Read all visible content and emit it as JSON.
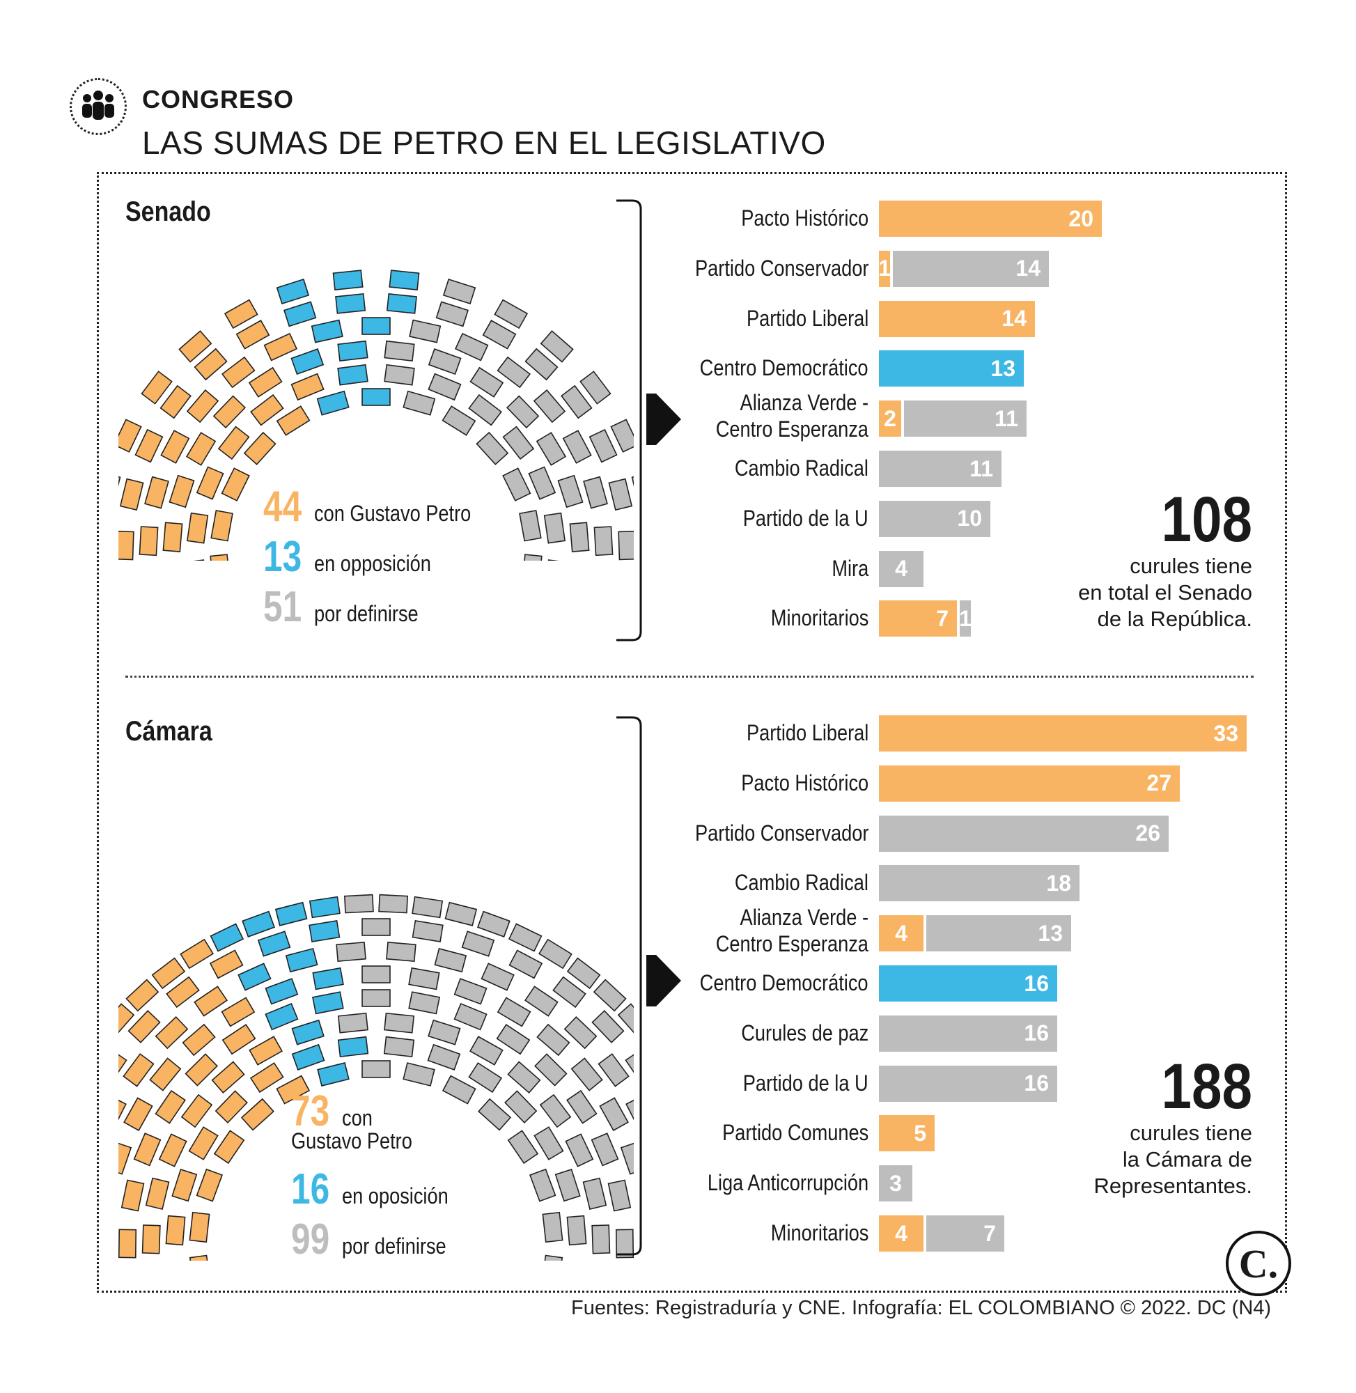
{
  "header": {
    "kicker": "CONGRESO",
    "headline": "LAS SUMAS DE PETRO EN EL LEGISLATIVO",
    "icon": "group-people-icon"
  },
  "colors": {
    "petro": "#F9B463",
    "opposition": "#3DB7E4",
    "undefined": "#BDBDBD",
    "text": "#1a1a1a"
  },
  "chart_data": [
    {
      "type": "bar",
      "orientation": "horizontal",
      "stacked": true,
      "title": "Senado",
      "categories": [
        "Pacto Histórico",
        "Partido Conservador",
        "Partido Liberal",
        "Centro Democrático",
        "Alianza Verde - Centro Esperanza",
        "Cambio Radical",
        "Partido de la U",
        "Mira",
        "Minoritarios"
      ],
      "series": [
        {
          "name": "con Gustavo Petro",
          "color": "petro",
          "values": [
            20,
            1,
            14,
            0,
            2,
            0,
            0,
            0,
            7
          ]
        },
        {
          "name": "en oposición",
          "color": "opposition",
          "values": [
            0,
            0,
            0,
            13,
            0,
            0,
            0,
            0,
            0
          ]
        },
        {
          "name": "por definirse",
          "color": "undefined",
          "values": [
            0,
            14,
            0,
            0,
            11,
            11,
            10,
            4,
            1
          ]
        }
      ],
      "xlim": [
        0,
        33
      ],
      "summary": [
        {
          "value": "44",
          "label": "con Gustavo Petro",
          "color": "petro"
        },
        {
          "value": "13",
          "label": "en opposición",
          "color": "opposition"
        },
        {
          "value": "51",
          "label": "por definirse",
          "color": "undefined"
        }
      ],
      "total": {
        "value": "108",
        "text_lines": [
          "curules tiene",
          "en total el Senado",
          "de la República."
        ]
      }
    },
    {
      "type": "bar",
      "orientation": "horizontal",
      "stacked": true,
      "title": "Cámara",
      "categories": [
        "Partido Liberal",
        "Pacto Histórico",
        "Partido Conservador",
        "Cambio Radical",
        "Alianza Verde - Centro Esperanza",
        "Centro Democrático",
        "Curules de paz",
        "Partido de la U",
        "Partido Comunes",
        "Liga Anticorrupción",
        "Minoritarios"
      ],
      "series": [
        {
          "name": "con Gustavo Petro",
          "color": "petro",
          "values": [
            33,
            27,
            0,
            0,
            4,
            0,
            0,
            0,
            5,
            0,
            4
          ]
        },
        {
          "name": "en oposición",
          "color": "opposition",
          "values": [
            0,
            0,
            0,
            0,
            0,
            16,
            0,
            0,
            0,
            0,
            0
          ]
        },
        {
          "name": "por definirse",
          "color": "undefined",
          "values": [
            0,
            0,
            26,
            18,
            13,
            0,
            16,
            16,
            0,
            3,
            7
          ]
        }
      ],
      "xlim": [
        0,
        33
      ],
      "summary": [
        {
          "value": "73",
          "label_lines": [
            "con",
            "Gustavo Petro"
          ],
          "color": "petro"
        },
        {
          "value": "16",
          "label": "en oposición",
          "color": "opposition"
        },
        {
          "value": "99",
          "label": "por definirse",
          "color": "undefined"
        }
      ],
      "total": {
        "value": "188",
        "text_lines": [
          "curules tiene",
          "la Cámara de",
          "Representantes."
        ]
      }
    }
  ],
  "footer": {
    "source": "Fuentes: Registraduría y CNE. Infografía: EL COLOMBIANO © 2022. DC (N4)",
    "logo_letter": "C."
  }
}
